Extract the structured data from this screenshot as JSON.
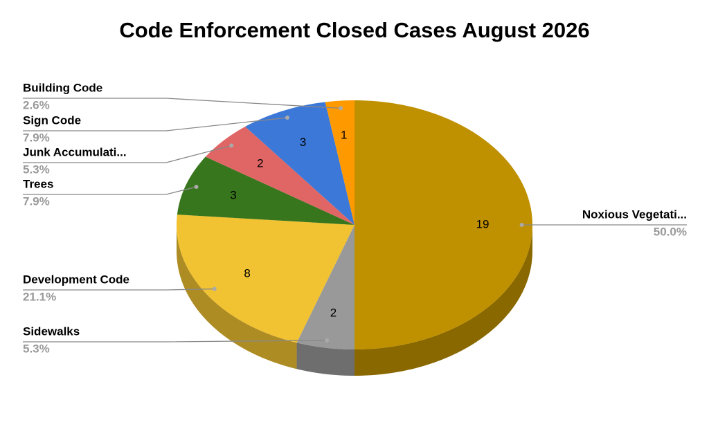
{
  "chart_data": {
    "type": "pie3d",
    "title": "Code Enforcement Closed Cases August 2026",
    "categories": [
      "Noxious Vegetati...",
      "Sidewalks",
      "Development Code",
      "Trees",
      "Junk Accumulati...",
      "Sign Code",
      "Building Code"
    ],
    "values": [
      19,
      2,
      8,
      3,
      2,
      3,
      1
    ],
    "percent_labels": [
      "50.0%",
      "5.3%",
      "21.1%",
      "7.9%",
      "5.3%",
      "7.9%",
      "2.6%"
    ],
    "colors": [
      "#bf9000",
      "#999999",
      "#f1c232",
      "#38761d",
      "#e06666",
      "#3c78d8",
      "#ff9900"
    ]
  }
}
